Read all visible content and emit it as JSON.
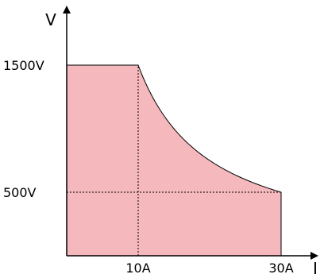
{
  "chart_data": {
    "type": "area",
    "title": "",
    "xlabel": "I",
    "ylabel": "V",
    "x_unit": "A",
    "y_unit": "V",
    "xlim": [
      0,
      36
    ],
    "ylim": [
      0,
      1875
    ],
    "x_ticks": [
      {
        "value": 10,
        "label": "10A"
      },
      {
        "value": 30,
        "label": "30A"
      }
    ],
    "y_ticks": [
      {
        "value": 1500,
        "label": "1500V"
      },
      {
        "value": 500,
        "label": "500V"
      }
    ],
    "series": [
      {
        "fill_color": "#f4b8bd",
        "line_color": "#000000",
        "segments": [
          {
            "from": [
              0,
              1500
            ],
            "to": [
              10,
              1500
            ],
            "kind": "constant-voltage"
          },
          {
            "from": [
              10,
              1500
            ],
            "to": [
              30,
              500
            ],
            "kind": "constant-power",
            "power_w": 15000
          },
          {
            "from": [
              30,
              500
            ],
            "to": [
              30,
              0
            ],
            "kind": "constant-current"
          }
        ]
      }
    ],
    "guides": [
      {
        "axis": "x",
        "value": 10
      },
      {
        "axis": "y",
        "value": 500
      }
    ],
    "grid": false,
    "legend": "none"
  }
}
